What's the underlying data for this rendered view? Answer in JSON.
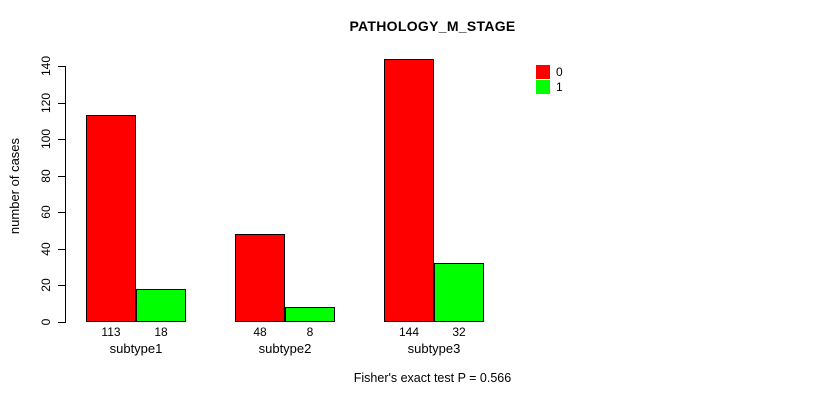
{
  "chart_data": {
    "type": "bar",
    "title": "PATHOLOGY_M_STAGE",
    "ylabel": "number of cases",
    "xlabel": "",
    "categories": [
      "subtype1",
      "subtype2",
      "subtype3"
    ],
    "series": [
      {
        "name": "0",
        "color": "#FF0000",
        "values": [
          113,
          48,
          144
        ]
      },
      {
        "name": "1",
        "color": "#00FF00",
        "values": [
          18,
          8,
          32
        ]
      }
    ],
    "ylim": [
      0,
      140
    ],
    "yticks": [
      0,
      20,
      40,
      60,
      80,
      100,
      120,
      140
    ],
    "grid": false,
    "legend_position": "inside-top-right",
    "values_shown_below_bars": true,
    "caption": "Fisher's exact test P = 0.566"
  }
}
